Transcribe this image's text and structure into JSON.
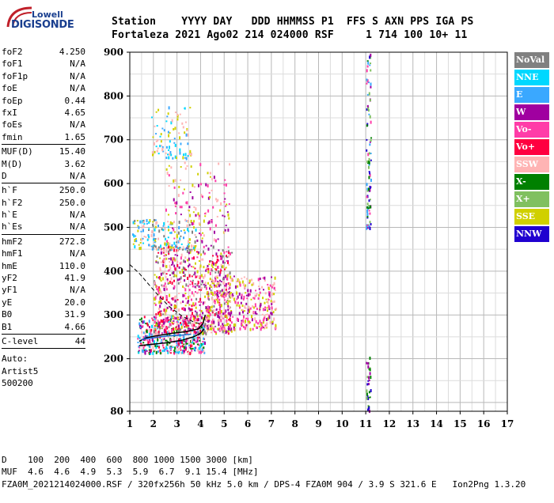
{
  "logo": {
    "line1": "Lowell",
    "line2": "DIGISONDE"
  },
  "header": {
    "labels": "Station    YYYY DAY   DDD HHMMSS P1  FFS S AXN PPS IGA PS",
    "values": "Fortaleza 2021 Ago02 214 024000 RSF     1 714 100 10+ 11"
  },
  "params": [
    [
      {
        "k": "foF2",
        "v": "4.250"
      },
      {
        "k": "foF1",
        "v": "N/A"
      },
      {
        "k": "foF1p",
        "v": "N/A"
      },
      {
        "k": "foE",
        "v": "N/A"
      },
      {
        "k": "foEp",
        "v": "0.44"
      },
      {
        "k": "fxI",
        "v": "4.65"
      },
      {
        "k": "foEs",
        "v": "N/A"
      },
      {
        "k": "fmin",
        "v": "1.65"
      }
    ],
    [
      {
        "k": "MUF(D)",
        "v": "15.40"
      },
      {
        "k": "M(D)",
        "v": "3.62"
      },
      {
        "k": "D",
        "v": "N/A"
      }
    ],
    [
      {
        "k": "h`F",
        "v": "250.0"
      },
      {
        "k": "h`F2",
        "v": "250.0"
      },
      {
        "k": "h`E",
        "v": "N/A"
      },
      {
        "k": "h`Es",
        "v": "N/A"
      }
    ],
    [
      {
        "k": "hmF2",
        "v": "272.8"
      },
      {
        "k": "hmF1",
        "v": "N/A"
      },
      {
        "k": "hmE",
        "v": "110.0"
      },
      {
        "k": "yF2",
        "v": "41.9"
      },
      {
        "k": "yF1",
        "v": "N/A"
      },
      {
        "k": "yE",
        "v": "20.0"
      },
      {
        "k": "B0",
        "v": "31.9"
      },
      {
        "k": "B1",
        "v": "4.66"
      }
    ],
    [
      {
        "k": "C-level",
        "v": "44"
      }
    ]
  ],
  "auto": {
    "line1": "Auto:",
    "line2": "Artist5",
    "line3": "500200"
  },
  "footer": {
    "d_row": "D    100  200  400  600  800 1000 1500 3000 [km]",
    "muf_row": "MUF  4.6  4.6  4.9  5.3  5.9  6.7  9.1 15.4 [MHz]",
    "info": "FZA0M_2021214024000.RSF / 320fx256h 50 kHz 5.0 km / DPS-4 FZA0M 904 / 3.9 S 321.6 E   Ion2Png 1.3.20"
  },
  "legend": [
    {
      "label": "NoVal",
      "color": "#808080"
    },
    {
      "label": "NNE",
      "color": "#00d8ff"
    },
    {
      "label": "E",
      "color": "#3aa8ff"
    },
    {
      "label": "W",
      "color": "#a000a0"
    },
    {
      "label": "Vo-",
      "color": "#ff3ca8"
    },
    {
      "label": "Vo+",
      "color": "#ff0040"
    },
    {
      "label": "SSW",
      "color": "#ffb4b4"
    },
    {
      "label": "X-",
      "color": "#008000"
    },
    {
      "label": "X+",
      "color": "#80c060"
    },
    {
      "label": "SSE",
      "color": "#d0d000"
    },
    {
      "label": "NNW",
      "color": "#2000d0"
    }
  ],
  "chart_data": {
    "type": "scatter",
    "xlim": [
      1,
      17
    ],
    "ylim": [
      80,
      900
    ],
    "xticks": [
      "1",
      "2",
      "3",
      "4",
      "5",
      "6",
      "7",
      "8",
      "9",
      "10",
      "11",
      "12",
      "13",
      "14",
      "15",
      "16",
      "17"
    ],
    "yticks": [
      "80",
      "200",
      "300",
      "400",
      "500",
      "600",
      "700",
      "800",
      "900"
    ],
    "ytick_values": [
      80,
      200,
      300,
      400,
      500,
      600,
      700,
      800,
      900
    ],
    "grid": true,
    "traces": [
      {
        "name": "O-trace",
        "color": "#000000",
        "dash": false,
        "points": [
          [
            1.4,
            240
          ],
          [
            1.7,
            248
          ],
          [
            2.2,
            253
          ],
          [
            2.8,
            258
          ],
          [
            3.4,
            262
          ],
          [
            3.9,
            268
          ],
          [
            4.1,
            280
          ],
          [
            4.2,
            300
          ]
        ]
      },
      {
        "name": "profile",
        "color": "#000000",
        "dash": false,
        "points": [
          [
            1.4,
            230
          ],
          [
            1.8,
            232
          ],
          [
            2.5,
            236
          ],
          [
            3.2,
            242
          ],
          [
            3.7,
            250
          ],
          [
            4.0,
            258
          ],
          [
            4.15,
            268
          ]
        ]
      },
      {
        "name": "X-trace",
        "color": "#1a6ad0",
        "dash": false,
        "points": [
          [
            1.5,
            244
          ],
          [
            2.0,
            248
          ],
          [
            2.6,
            252
          ],
          [
            3.2,
            254
          ],
          [
            3.6,
            256
          ]
        ]
      },
      {
        "name": "extrapolation",
        "color": "#000000",
        "dash": true,
        "points": [
          [
            1.0,
            415
          ],
          [
            1.4,
            395
          ],
          [
            1.8,
            370
          ],
          [
            2.2,
            345
          ],
          [
            2.7,
            318
          ],
          [
            3.2,
            298
          ],
          [
            3.7,
            284
          ],
          [
            4.1,
            278
          ]
        ]
      }
    ],
    "clusters": [
      {
        "x": [
          1.3,
          4.2
        ],
        "y": [
          215,
          300
        ],
        "n": 420,
        "colors": [
          "#008000",
          "#a000a0",
          "#3aa8ff",
          "#ff3ca8",
          "#ffb4b4",
          "#ff0040",
          "#00d8ff"
        ]
      },
      {
        "x": [
          2.0,
          5.3
        ],
        "y": [
          260,
          460
        ],
        "n": 700,
        "colors": [
          "#a000a0",
          "#ff3ca8",
          "#ffb4b4",
          "#ff0040",
          "#808080",
          "#d0d000"
        ]
      },
      {
        "x": [
          4.2,
          7.2
        ],
        "y": [
          270,
          390
        ],
        "n": 380,
        "colors": [
          "#ffb4b4",
          "#ff3ca8",
          "#a000a0",
          "#d0d000"
        ]
      },
      {
        "x": [
          1.1,
          3.8
        ],
        "y": [
          450,
          520
        ],
        "n": 160,
        "colors": [
          "#3aa8ff",
          "#00d8ff",
          "#d0d000",
          "#ffb4b4",
          "#808080"
        ]
      },
      {
        "x": [
          1.9,
          3.6
        ],
        "y": [
          660,
          780
        ],
        "n": 90,
        "colors": [
          "#3aa8ff",
          "#00d8ff",
          "#ffb4b4",
          "#d0d000"
        ]
      },
      {
        "x": [
          2.5,
          5.2
        ],
        "y": [
          470,
          650
        ],
        "n": 140,
        "colors": [
          "#ff3ca8",
          "#a000a0",
          "#d0d000",
          "#ffb4b4"
        ]
      },
      {
        "x": [
          11.0,
          11.2
        ],
        "y": [
          500,
          900
        ],
        "n": 90,
        "colors": [
          "#008000",
          "#80c060",
          "#2000d0",
          "#a000a0",
          "#ff3ca8",
          "#3aa8ff"
        ]
      },
      {
        "x": [
          11.0,
          11.2
        ],
        "y": [
          80,
          210
        ],
        "n": 30,
        "colors": [
          "#008000",
          "#80c060",
          "#a000a0",
          "#2000d0"
        ]
      }
    ]
  }
}
